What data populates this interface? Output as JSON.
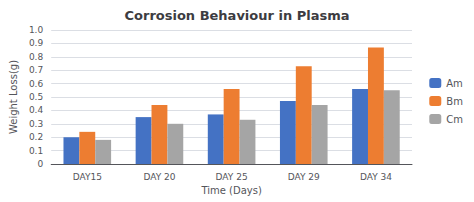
{
  "chart_data": {
    "type": "bar",
    "title": "Corrosion Behaviour in Plasma",
    "xlabel": "Time (Days)",
    "ylabel": "Weight Loss(g)",
    "categories": [
      "DAY15",
      "DAY 20",
      "DAY 25",
      "DAY 29",
      "DAY 34"
    ],
    "series": [
      {
        "name": "Am",
        "color": "#4472c4",
        "values": [
          0.2,
          0.35,
          0.37,
          0.47,
          0.56
        ]
      },
      {
        "name": "Bm",
        "color": "#ed7d31",
        "values": [
          0.24,
          0.44,
          0.56,
          0.73,
          0.87
        ]
      },
      {
        "name": "Cm",
        "color": "#a5a5a5",
        "values": [
          0.18,
          0.3,
          0.33,
          0.44,
          0.55
        ]
      }
    ],
    "ylim": [
      0,
      1.0
    ],
    "yticks": [
      0,
      0.1,
      0.2,
      0.3,
      0.4,
      0.5,
      0.6,
      0.7,
      0.8,
      0.9,
      {
        "value": 1.0,
        "label": "1.0"
      }
    ],
    "grid": true,
    "legend": "right"
  }
}
